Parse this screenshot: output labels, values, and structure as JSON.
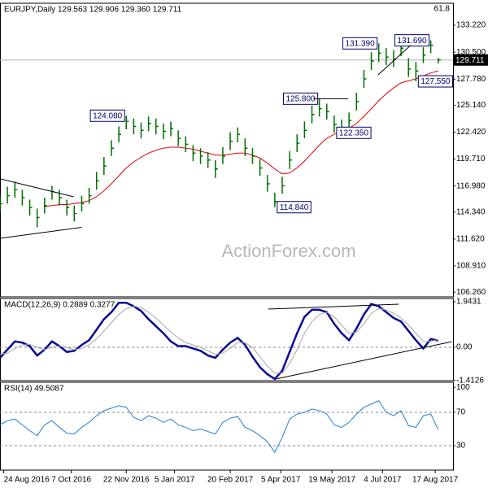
{
  "chart_data": [
    {
      "type": "ohlc",
      "title": "EURJPY,Daily  129.563 129.906 129.360 129.711",
      "note": "61.8",
      "watermark": "ActionForex.com",
      "color": "#006e00",
      "xlim": [
        0,
        61
      ],
      "ylim": [
        105.78,
        135.44
      ],
      "yticks": [
        {
          "value": 106.26,
          "label": "106.260"
        },
        {
          "value": 108.91,
          "label": "108.910"
        },
        {
          "value": 111.62,
          "label": "111.620"
        },
        {
          "value": 114.34,
          "label": "114.340"
        },
        {
          "value": 116.98,
          "label": "116.980"
        },
        {
          "value": 119.71,
          "label": "119.710"
        },
        {
          "value": 122.42,
          "label": "122.420"
        },
        {
          "value": 125.14,
          "label": "125.140"
        },
        {
          "value": 127.78,
          "label": "127.780"
        },
        {
          "value": 130.5,
          "label": "130.500"
        },
        {
          "value": 133.22,
          "label": "133.220"
        }
      ],
      "high": [
        116.0,
        116.9,
        117.4,
        116.6,
        115.6,
        114.7,
        115.8,
        117.0,
        116.6,
        115.6,
        115.0,
        116.0,
        116.8,
        118.4,
        119.9,
        121.6,
        123.0,
        124.08,
        123.8,
        123.4,
        124.0,
        123.8,
        123.3,
        123.5,
        122.6,
        122.0,
        121.1,
        120.8,
        120.4,
        119.6,
        120.9,
        122.4,
        122.9,
        121.8,
        120.8,
        119.7,
        118.1,
        116.3,
        117.9,
        120.5,
        122.2,
        123.5,
        125.1,
        125.8,
        125.3,
        124.1,
        123.7,
        124.4,
        126.4,
        128.7,
        130.5,
        131.39,
        130.9,
        130.7,
        131.6,
        129.9,
        129.5,
        131.0,
        131.69,
        129.906
      ],
      "low": [
        114.4,
        115.2,
        115.8,
        115.0,
        114.0,
        112.8,
        114.2,
        115.6,
        115.0,
        114.0,
        113.4,
        114.4,
        115.2,
        116.6,
        118.1,
        120.0,
        121.4,
        122.7,
        122.2,
        121.8,
        122.5,
        122.2,
        121.7,
        122.0,
        121.0,
        120.4,
        119.5,
        119.2,
        118.8,
        117.8,
        119.2,
        120.6,
        121.4,
        120.0,
        119.2,
        118.0,
        116.4,
        114.84,
        116.2,
        118.7,
        120.4,
        121.8,
        123.3,
        124.0,
        123.7,
        122.35,
        122.4,
        122.8,
        124.6,
        126.9,
        128.7,
        129.5,
        129.2,
        129.0,
        130.1,
        128.0,
        127.55,
        129.4,
        130.4,
        129.36
      ],
      "close": [
        115.2,
        116.0,
        116.6,
        115.8,
        114.8,
        113.8,
        115.0,
        116.4,
        115.8,
        114.8,
        114.2,
        115.2,
        116.0,
        117.5,
        119.0,
        120.8,
        122.2,
        123.5,
        123.0,
        122.6,
        123.3,
        123.0,
        122.5,
        122.8,
        121.8,
        121.2,
        120.3,
        120.0,
        119.6,
        118.7,
        120.0,
        121.5,
        122.2,
        120.8,
        120.0,
        118.8,
        117.2,
        115.4,
        117.0,
        119.6,
        121.3,
        122.6,
        124.2,
        124.8,
        124.5,
        123.2,
        122.9,
        123.6,
        125.5,
        127.8,
        129.6,
        130.4,
        130.0,
        129.8,
        130.9,
        128.8,
        128.6,
        130.2,
        131.2,
        129.711
      ],
      "ma": {
        "color": "#e00000",
        "values": [
          null,
          null,
          null,
          null,
          null,
          null,
          114.9,
          115.0,
          115.1,
          115.1,
          115.2,
          115.3,
          115.5,
          115.9,
          116.5,
          117.2,
          118.0,
          118.8,
          119.4,
          119.9,
          120.3,
          120.6,
          120.8,
          120.9,
          120.9,
          120.8,
          120.7,
          120.5,
          120.3,
          120.1,
          120.1,
          120.2,
          120.3,
          120.3,
          120.1,
          119.8,
          119.3,
          118.7,
          118.2,
          118.3,
          118.8,
          119.5,
          120.3,
          121.1,
          121.8,
          122.2,
          122.5,
          122.8,
          123.3,
          124.0,
          124.8,
          125.6,
          126.3,
          126.9,
          127.4,
          127.6,
          127.8,
          128.1,
          128.4,
          128.6
        ]
      },
      "annotations": [
        {
          "x": 17,
          "value": 124.08,
          "label": "124.080"
        },
        {
          "x": 37,
          "value": 114.84,
          "label": "114.840"
        },
        {
          "x": 43,
          "value": 125.8,
          "label": "125.800"
        },
        {
          "x": 45,
          "value": 122.35,
          "label": "122.350"
        },
        {
          "x": 51,
          "value": 131.39,
          "label": "131.390"
        },
        {
          "x": 58,
          "value": 131.69,
          "label": "131.690"
        },
        {
          "x": 56,
          "value": 127.55,
          "label": "127.550"
        }
      ],
      "trendlines": [
        {
          "x": [
            0,
            9.9
          ],
          "y": [
            117.7,
            115.9
          ]
        },
        {
          "x": [
            0,
            11
          ],
          "y": [
            111.7,
            112.8
          ]
        },
        {
          "x": [
            42.2,
            46.9
          ],
          "y": [
            125.8,
            125.8
          ]
        },
        {
          "x": [
            50.9,
            55.3
          ],
          "y": [
            128.2,
            131.2
          ]
        }
      ]
    },
    {
      "type": "line",
      "title": "MACD(12,26,9) 0.2889 0.3277",
      "xlim": [
        0,
        61
      ],
      "ylim": [
        -1.424,
        2.083
      ],
      "yticks": [
        1.9431,
        {
          "value": 0,
          "label": "0.00"
        },
        -1.4126
      ],
      "dashed_levels": [
        0
      ],
      "lines": [
        {
          "color": "#0a0a96",
          "width": 2.5,
          "values": [
            -0.45,
            -0.1,
            0.25,
            0.2,
            0.05,
            -0.35,
            -0.1,
            0.25,
            0.05,
            -0.2,
            -0.15,
            0.1,
            0.3,
            0.75,
            1.2,
            1.5,
            1.9,
            1.9,
            1.75,
            1.55,
            1.2,
            0.9,
            0.6,
            0.25,
            0.05,
            0.05,
            -0.05,
            -0.15,
            -0.35,
            -0.45,
            -0.1,
            0.2,
            0.4,
            0.1,
            -0.4,
            -0.85,
            -1.15,
            -1.35,
            -1.0,
            -0.2,
            0.6,
            1.3,
            1.6,
            1.6,
            1.5,
            1.0,
            0.6,
            0.3,
            0.8,
            1.4,
            1.85,
            1.75,
            1.5,
            1.25,
            1.1,
            0.7,
            0.3,
            -0.05,
            0.35,
            0.2889
          ]
        },
        {
          "color": "#a8a8a8",
          "width": 1,
          "values": [
            -0.3,
            -0.25,
            -0.05,
            0.1,
            0.12,
            0.0,
            -0.1,
            0.0,
            0.05,
            0.0,
            -0.1,
            -0.05,
            0.1,
            0.35,
            0.7,
            1.05,
            1.4,
            1.65,
            1.75,
            1.7,
            1.5,
            1.25,
            0.95,
            0.65,
            0.4,
            0.2,
            0.1,
            0.0,
            -0.15,
            -0.3,
            -0.25,
            -0.05,
            0.2,
            0.2,
            0.0,
            -0.4,
            -0.8,
            -1.1,
            -1.1,
            -0.7,
            -0.1,
            0.6,
            1.1,
            1.4,
            1.5,
            1.3,
            0.95,
            0.6,
            0.65,
            1.0,
            1.45,
            1.65,
            1.6,
            1.45,
            1.25,
            0.95,
            0.6,
            0.25,
            0.25,
            0.3277
          ]
        }
      ],
      "trendlines": [
        {
          "x": [
            36.1,
            53.7
          ],
          "y": [
            1.63,
            1.84
          ]
        },
        {
          "x": [
            37.2,
            60.8
          ],
          "y": [
            -1.35,
            0.24
          ]
        }
      ]
    },
    {
      "type": "line",
      "title": "RSI(14) 49.5087",
      "xlim": [
        0,
        61
      ],
      "ylim": [
        0.7,
        106.1
      ],
      "yticks": [
        100,
        70,
        30
      ],
      "dashed_levels": [
        70,
        30
      ],
      "lines": [
        {
          "color": "#1e7fd6",
          "width": 1,
          "values": [
            55,
            60,
            62,
            55,
            48,
            42,
            55,
            60,
            52,
            45,
            44,
            52,
            58,
            66,
            72,
            75,
            78,
            76,
            64,
            60,
            66,
            63,
            58,
            62,
            55,
            52,
            48,
            50,
            47,
            44,
            58,
            63,
            65,
            52,
            48,
            42,
            35,
            22,
            40,
            62,
            68,
            70,
            74,
            72,
            68,
            55,
            52,
            58,
            68,
            76,
            80,
            84,
            70,
            66,
            72,
            54,
            52,
            66,
            68,
            49.5087
          ]
        }
      ],
      "xticks": [
        {
          "value": 0.5,
          "label": "24 Aug 2016"
        },
        {
          "value": 9.6,
          "label": "7 Oct 2016"
        },
        {
          "value": 17,
          "label": "22 Nov 2016"
        },
        {
          "value": 23.5,
          "label": "5 Jan 2017"
        },
        {
          "value": 31,
          "label": "20 Feb 2017"
        },
        {
          "value": 37.8,
          "label": "5 Apr 2017"
        },
        {
          "value": 44.7,
          "label": "19 May 2017"
        },
        {
          "value": 51.5,
          "label": "4 Jul 2017"
        },
        {
          "value": 58.6,
          "label": "17 Aug 2017"
        }
      ]
    }
  ]
}
